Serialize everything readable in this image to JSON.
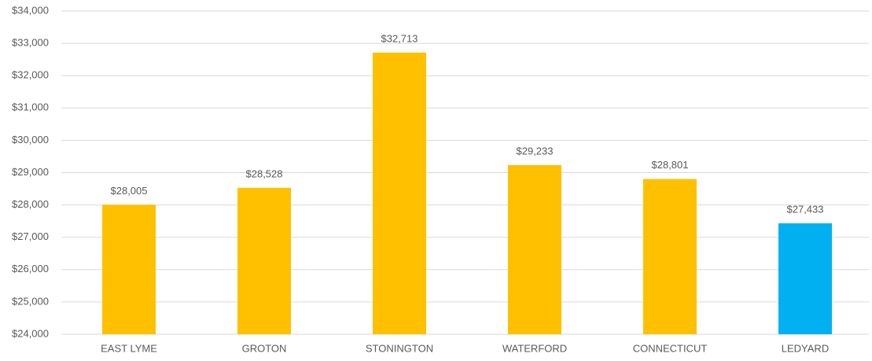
{
  "chart_data": {
    "type": "bar",
    "categories": [
      "EAST LYME",
      "GROTON",
      "STONINGTON",
      "WATERFORD",
      "CONNECTICUT",
      "LEDYARD"
    ],
    "values": [
      28005,
      28528,
      32713,
      29233,
      28801,
      27433
    ],
    "value_labels": [
      "$28,005",
      "$28,528",
      "$32,713",
      "$29,233",
      "$28,801",
      "$27,433"
    ],
    "colors": [
      "#ffc000",
      "#ffc000",
      "#ffc000",
      "#ffc000",
      "#ffc000",
      "#00b0f0"
    ],
    "ylim": [
      24000,
      34000
    ],
    "yticks": [
      {
        "value": 24000,
        "label": "$24,000"
      },
      {
        "value": 25000,
        "label": "$25,000"
      },
      {
        "value": 26000,
        "label": "$26,000"
      },
      {
        "value": 27000,
        "label": "$27,000"
      },
      {
        "value": 28000,
        "label": "$28,000"
      },
      {
        "value": 29000,
        "label": "$29,000"
      },
      {
        "value": 30000,
        "label": "$30,000"
      },
      {
        "value": 31000,
        "label": "$31,000"
      },
      {
        "value": 32000,
        "label": "$32,000"
      },
      {
        "value": 33000,
        "label": "$33,000"
      },
      {
        "value": 34000,
        "label": "$34,000"
      }
    ],
    "grid": true
  }
}
